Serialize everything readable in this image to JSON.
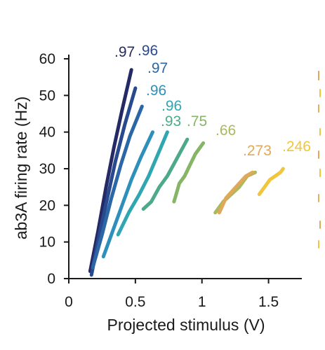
{
  "chart_data": {
    "type": "line",
    "title": "",
    "xlabel": "Projected stimulus (V)",
    "ylabel": "ab3A firing rate (Hz)",
    "xlim": [
      0,
      1.75
    ],
    "ylim": [
      0,
      60
    ],
    "xticks": [
      0,
      0.5,
      1,
      1.5
    ],
    "xtick_labels": [
      "0",
      "0.5",
      "1",
      "1.5"
    ],
    "yticks": [
      0,
      10,
      20,
      30,
      40,
      50,
      60
    ],
    "ytick_labels": [
      "0",
      "10",
      "20",
      "30",
      "40",
      "50",
      "60"
    ],
    "grid": false,
    "legend": "none",
    "series": [
      {
        "label": ".97",
        "color": "#252a66",
        "x": [
          0.16,
          0.22,
          0.28,
          0.34,
          0.4,
          0.47
        ],
        "y": [
          2,
          13,
          25,
          36,
          46,
          57
        ]
      },
      {
        "label": ".96",
        "color": "#29498e",
        "x": [
          0.17,
          0.23,
          0.29,
          0.35,
          0.42,
          0.5
        ],
        "y": [
          1,
          12,
          22,
          32,
          42,
          52
        ]
      },
      {
        "label": ".97",
        "color": "#2b67a6",
        "x": [
          0.18,
          0.25,
          0.32,
          0.39,
          0.46,
          0.55
        ],
        "y": [
          3,
          12,
          22,
          31,
          39,
          47
        ]
      },
      {
        "label": ".96",
        "color": "#2e90ba",
        "x": [
          0.26,
          0.33,
          0.4,
          0.47,
          0.54,
          0.63
        ],
        "y": [
          6,
          13,
          20,
          27,
          33,
          40
        ]
      },
      {
        "label": ".96",
        "color": "#2fa6b0",
        "x": [
          0.37,
          0.45,
          0.53,
          0.6,
          0.67,
          0.74
        ],
        "y": [
          12,
          18,
          23,
          28,
          34,
          40
        ]
      },
      {
        "label": ".93",
        "color": "#4caa8a",
        "x": [
          0.56,
          0.62,
          0.68,
          0.74,
          0.8,
          0.89
        ],
        "y": [
          19,
          21,
          25,
          28,
          32,
          38
        ]
      },
      {
        "label": ".75",
        "color": "#86b566",
        "x": [
          0.79,
          0.83,
          0.87,
          0.91,
          0.95,
          1.01
        ],
        "y": [
          21,
          26,
          28,
          31,
          34,
          37
        ]
      },
      {
        "label": ".66",
        "color": "#aab860",
        "x": [
          1.1,
          1.16,
          1.22,
          1.28,
          1.34,
          1.4
        ],
        "y": [
          18,
          21,
          23,
          25,
          28,
          29
        ]
      },
      {
        "label": ".273",
        "color": "#e0a95a",
        "x": [
          1.13,
          1.18,
          1.23,
          1.28,
          1.33,
          1.38
        ],
        "y": [
          18,
          22,
          24,
          26,
          28,
          29
        ]
      },
      {
        "label": ".246",
        "color": "#efc63c",
        "x": [
          1.43,
          1.47,
          1.51,
          1.55,
          1.59,
          1.61
        ],
        "y": [
          23,
          25,
          27,
          28,
          29,
          30
        ]
      }
    ]
  }
}
